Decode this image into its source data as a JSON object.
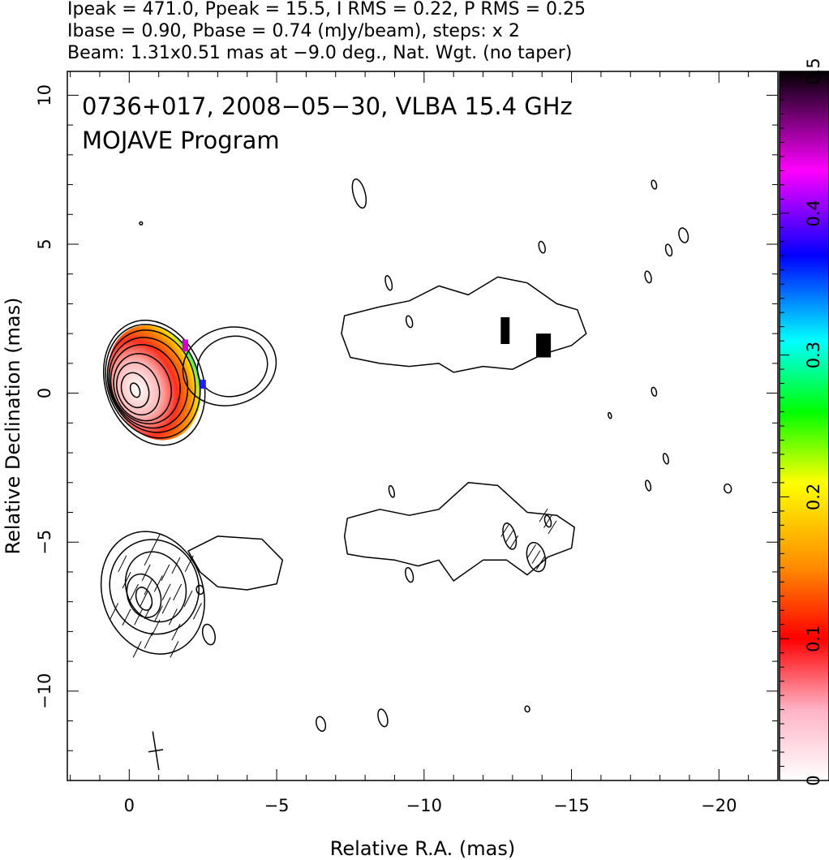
{
  "header": {
    "line1": "Ipeak = 471.0, Ppeak = 15.5, I RMS = 0.22, P RMS = 0.25",
    "line2": "Ibase = 0.90, Pbase = 0.74 (mJy/beam), steps: x 2",
    "line3": "Beam: 1.31x0.51 mas at −9.0 deg., Nat. Wgt. (no taper)"
  },
  "chart_data": {
    "type": "heatmap",
    "title": "0736+017, 2008−05−30, VLBA 15.4 GHz",
    "subtitle": "MOJAVE Program",
    "xlabel": "Relative R.A. (mas)",
    "ylabel": "Relative Declination (mas)",
    "xlim": [
      2.1,
      -22.0
    ],
    "ylim": [
      -13.0,
      10.8
    ],
    "x_reversed": true,
    "x_ticks": [
      0,
      -5,
      -10,
      -15,
      -20
    ],
    "x_tick_labels": [
      "0",
      "−5",
      "−10",
      "−15",
      "−20"
    ],
    "y_ticks": [
      10,
      5,
      0,
      -5,
      -10
    ],
    "y_tick_labels": [
      "10",
      "5",
      "0",
      "−5",
      "−10"
    ],
    "colorbar": {
      "min": 0,
      "max": 0.5,
      "ticks": [
        0,
        0.1,
        0.2,
        0.3,
        0.4,
        0.5
      ],
      "tick_labels": [
        "0",
        "0.1",
        "0.2",
        "0.3",
        "0.4",
        "0.5"
      ],
      "colors": [
        "#ffffff",
        "#ffb3c6",
        "#ff0000",
        "#ff7a00",
        "#ffff00",
        "#00ff00",
        "#00ffff",
        "#0000ff",
        "#ff00ff",
        "#000000"
      ]
    },
    "upper_panel": {
      "center": [
        0,
        0
      ],
      "core_contours": [
        {
          "cx": -0.2,
          "cy": 0.1,
          "rx": 0.15,
          "ry": 0.25
        },
        {
          "cx": -0.2,
          "cy": 0.1,
          "rx": 0.45,
          "ry": 0.6
        },
        {
          "cx": -0.3,
          "cy": 0.15,
          "rx": 0.7,
          "ry": 0.9
        },
        {
          "cx": -0.45,
          "cy": 0.2,
          "rx": 0.95,
          "ry": 1.15
        },
        {
          "cx": -0.55,
          "cy": 0.3,
          "rx": 1.15,
          "ry": 1.35
        },
        {
          "cx": -0.65,
          "cy": 0.35,
          "rx": 1.3,
          "ry": 1.55
        },
        {
          "cx": -0.75,
          "cy": 0.4,
          "rx": 1.45,
          "ry": 1.75
        },
        {
          "cx": -0.8,
          "cy": 0.4,
          "rx": 1.55,
          "ry": 1.95
        },
        {
          "cx": -0.85,
          "cy": 0.35,
          "rx": 1.65,
          "ry": 2.15
        }
      ],
      "blob_contours": [
        {
          "cx": -3.5,
          "cy": 0.9,
          "rx": 1.2,
          "ry": 1.0
        },
        {
          "cx": -3.4,
          "cy": 0.9,
          "rx": 1.6,
          "ry": 1.3
        }
      ],
      "jet_contour_points": [
        [
          -7.3,
          2.6
        ],
        [
          -8.5,
          2.9
        ],
        [
          -9.5,
          3.1
        ],
        [
          -10.5,
          3.6
        ],
        [
          -11.5,
          3.3
        ],
        [
          -12.5,
          3.9
        ],
        [
          -13.5,
          3.7
        ],
        [
          -14.5,
          3.0
        ],
        [
          -15.2,
          2.8
        ],
        [
          -15.5,
          2.0
        ],
        [
          -15.0,
          1.6
        ],
        [
          -14.0,
          1.3
        ],
        [
          -13.0,
          0.8
        ],
        [
          -12.0,
          0.9
        ],
        [
          -11.0,
          0.7
        ],
        [
          -10.5,
          1.0
        ],
        [
          -9.5,
          0.9
        ],
        [
          -8.5,
          1.0
        ],
        [
          -7.5,
          1.2
        ],
        [
          -7.2,
          2.0
        ]
      ],
      "polarization_pixels": [
        {
          "x": -12.6,
          "y": 2.1,
          "w": 0.3,
          "h": 0.9,
          "v": 0.5
        },
        {
          "x": -13.8,
          "y": 1.6,
          "w": 0.5,
          "h": 0.8,
          "v": 0.5
        },
        {
          "x": -1.8,
          "y": 1.6,
          "w": 0.2,
          "h": 0.4,
          "v": 0.45
        },
        {
          "x": -2.4,
          "y": 0.3,
          "w": 0.2,
          "h": 0.3,
          "v": 0.4
        }
      ],
      "isolated_contours": [
        {
          "cx": -7.8,
          "cy": 6.7,
          "rx": 0.2,
          "ry": 0.5
        },
        {
          "cx": -0.4,
          "cy": 5.7,
          "rx": 0.05,
          "ry": 0.05
        },
        {
          "cx": -14.0,
          "cy": 4.9,
          "rx": 0.1,
          "ry": 0.2
        },
        {
          "cx": -17.8,
          "cy": 7.0,
          "rx": 0.08,
          "ry": 0.15
        },
        {
          "cx": -18.8,
          "cy": 5.3,
          "rx": 0.15,
          "ry": 0.25
        },
        {
          "cx": -18.3,
          "cy": 4.8,
          "rx": 0.1,
          "ry": 0.2
        },
        {
          "cx": -17.6,
          "cy": 3.9,
          "rx": 0.1,
          "ry": 0.2
        },
        {
          "cx": -17.8,
          "cy": 0.05,
          "rx": 0.08,
          "ry": 0.15
        },
        {
          "cx": -16.3,
          "cy": -0.75,
          "rx": 0.05,
          "ry": 0.1
        },
        {
          "cx": -18.2,
          "cy": -2.2,
          "rx": 0.08,
          "ry": 0.18
        },
        {
          "cx": -17.6,
          "cy": -3.1,
          "rx": 0.08,
          "ry": 0.18
        },
        {
          "cx": -20.3,
          "cy": -3.2,
          "rx": 0.12,
          "ry": 0.15
        },
        {
          "cx": -8.8,
          "cy": 3.7,
          "rx": 0.1,
          "ry": 0.25
        },
        {
          "cx": -9.5,
          "cy": 2.4,
          "rx": 0.1,
          "ry": 0.2
        }
      ]
    },
    "lower_panel": {
      "core_contours": [
        {
          "cx": -0.5,
          "cy": -6.9,
          "rx": 0.25,
          "ry": 0.4
        },
        {
          "cx": -0.5,
          "cy": -6.8,
          "rx": 0.55,
          "ry": 0.75
        },
        {
          "cx": -0.9,
          "cy": -6.5,
          "rx": 1.0,
          "ry": 1.2
        },
        {
          "cx": -0.85,
          "cy": -6.5,
          "rx": 1.5,
          "ry": 1.6
        },
        {
          "cx": -0.8,
          "cy": -6.7,
          "rx": 1.7,
          "ry": 2.1
        }
      ],
      "blob_contour_points": [
        [
          -2.0,
          -5.3
        ],
        [
          -3.0,
          -4.8
        ],
        [
          -4.5,
          -4.9
        ],
        [
          -5.2,
          -5.6
        ],
        [
          -5.0,
          -6.4
        ],
        [
          -4.0,
          -6.6
        ],
        [
          -3.0,
          -6.5
        ],
        [
          -2.4,
          -6.0
        ]
      ],
      "jet_contour_points": [
        [
          -7.4,
          -4.2
        ],
        [
          -8.5,
          -3.9
        ],
        [
          -9.5,
          -4.1
        ],
        [
          -10.5,
          -3.9
        ],
        [
          -11.5,
          -3.0
        ],
        [
          -12.5,
          -3.1
        ],
        [
          -13.5,
          -4.0
        ],
        [
          -14.5,
          -4.1
        ],
        [
          -15.1,
          -4.5
        ],
        [
          -15.0,
          -5.2
        ],
        [
          -14.2,
          -5.5
        ],
        [
          -13.5,
          -6.1
        ],
        [
          -12.8,
          -5.6
        ],
        [
          -12.0,
          -5.6
        ],
        [
          -11.0,
          -6.3
        ],
        [
          -10.5,
          -5.6
        ],
        [
          -9.8,
          -5.8
        ],
        [
          -9.0,
          -5.6
        ],
        [
          -8.0,
          -5.5
        ],
        [
          -7.4,
          -5.4
        ],
        [
          -7.3,
          -4.8
        ]
      ],
      "isolated_contours": [
        {
          "cx": -2.4,
          "cy": -6.6,
          "rx": 0.12,
          "ry": 0.15
        },
        {
          "cx": -2.7,
          "cy": -8.1,
          "rx": 0.2,
          "ry": 0.35
        },
        {
          "cx": -8.9,
          "cy": -3.3,
          "rx": 0.08,
          "ry": 0.2
        },
        {
          "cx": -9.5,
          "cy": -6.1,
          "rx": 0.12,
          "ry": 0.25
        },
        {
          "cx": -12.9,
          "cy": -4.8,
          "rx": 0.2,
          "ry": 0.45
        },
        {
          "cx": -14.2,
          "cy": -4.3,
          "rx": 0.1,
          "ry": 0.2
        },
        {
          "cx": -13.8,
          "cy": -5.5,
          "rx": 0.3,
          "ry": 0.5
        },
        {
          "cx": -6.5,
          "cy": -11.1,
          "rx": 0.15,
          "ry": 0.25
        },
        {
          "cx": -8.6,
          "cy": -10.9,
          "rx": 0.15,
          "ry": 0.3
        },
        {
          "cx": -13.5,
          "cy": -10.6,
          "rx": 0.08,
          "ry": 0.1
        }
      ]
    },
    "beam": {
      "x": -0.9,
      "y": -12.0,
      "major": 1.31,
      "minor": 0.51,
      "pa_deg": -9.0
    }
  }
}
